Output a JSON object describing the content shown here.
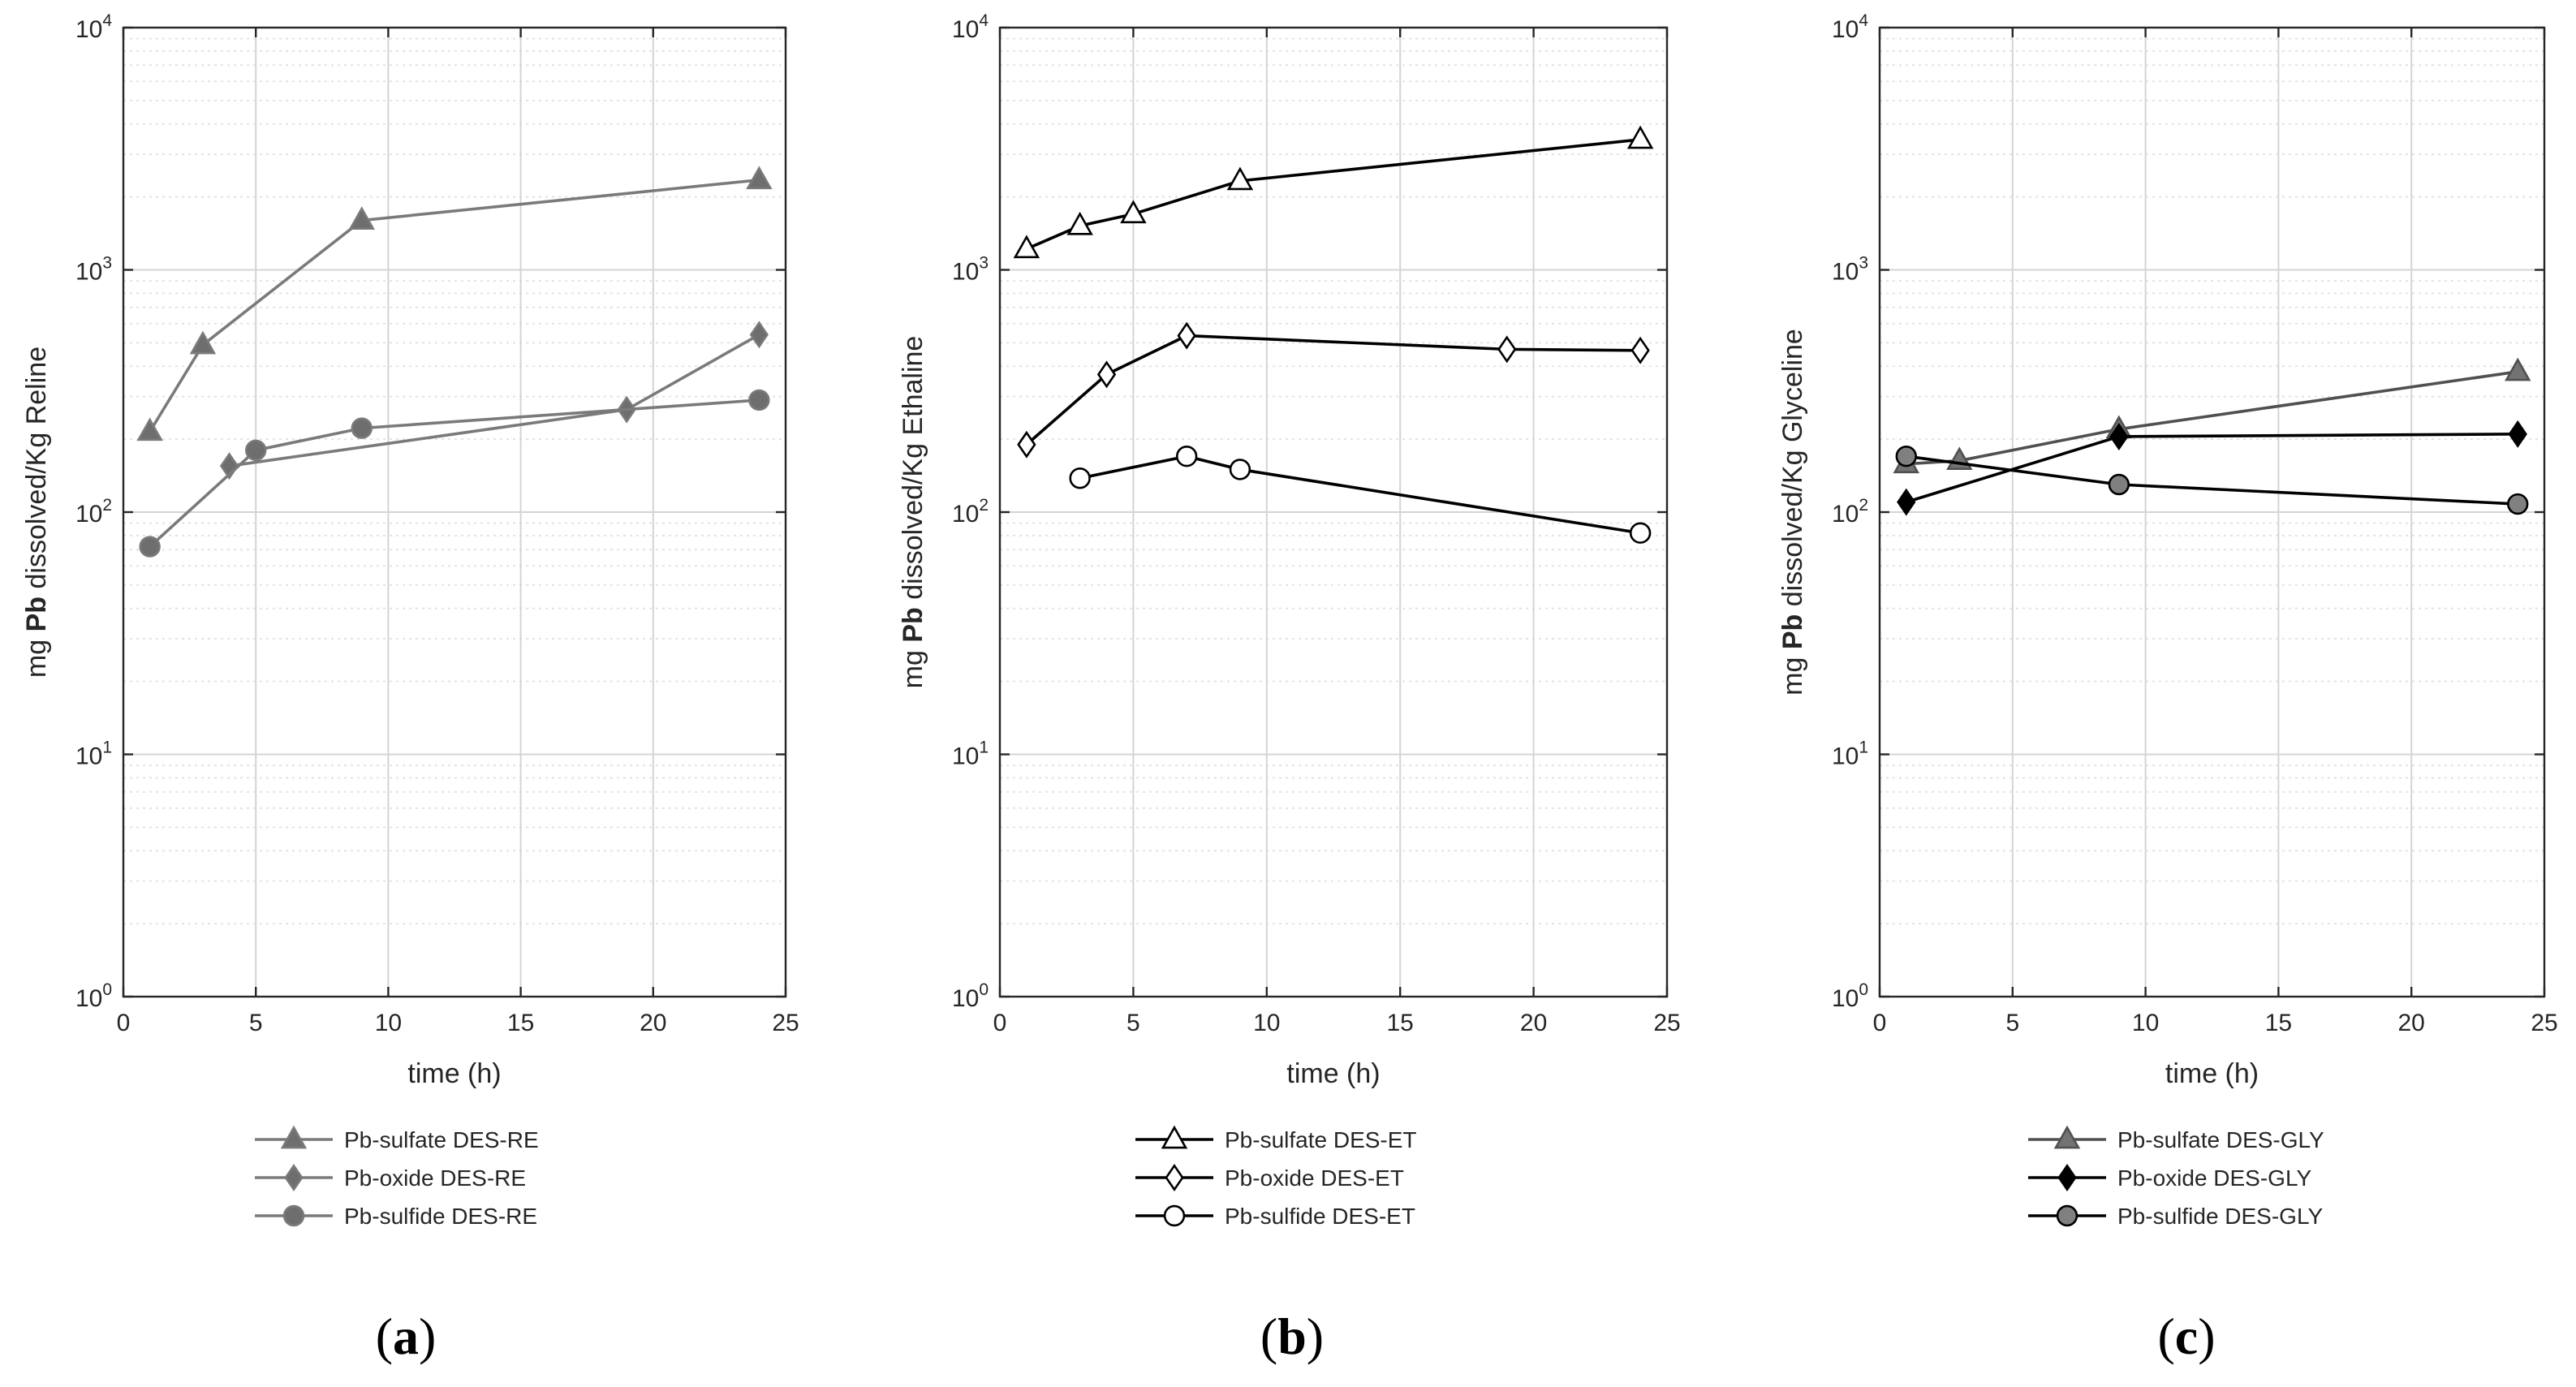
{
  "chart_data": [
    {
      "type": "line",
      "panel_label": "(a)",
      "panel_letter": "a",
      "xlabel": "time (h)",
      "ylabel_prefix": "mg ",
      "ylabel_bold": "Pb",
      "ylabel_suffix": " dissolved/Kg Reline",
      "yscale": "log",
      "xlim": [
        0,
        25
      ],
      "ylim": [
        1,
        10000
      ],
      "xticks": [
        0,
        5,
        10,
        15,
        20,
        25
      ],
      "yticks": [
        {
          "base": "10",
          "exp": "0"
        },
        {
          "base": "10",
          "exp": "1"
        },
        {
          "base": "10",
          "exp": "2"
        },
        {
          "base": "10",
          "exp": "3"
        },
        {
          "base": "10",
          "exp": "4"
        }
      ],
      "grid": true,
      "series": [
        {
          "name": "Pb-sulfate DES-RE",
          "marker": "triangle",
          "line_color": "#7a7a7a",
          "fill": "#6e6e6e",
          "x": [
            1,
            3,
            9,
            24
          ],
          "y": [
            215,
            490,
            1600,
            2350
          ]
        },
        {
          "name": "Pb-oxide DES-RE",
          "marker": "diamond",
          "line_color": "#7a7a7a",
          "fill": "#6e6e6e",
          "x": [
            4,
            19,
            24
          ],
          "y": [
            155,
            265,
            540
          ]
        },
        {
          "name": "Pb-sulfide DES-RE",
          "marker": "circle",
          "line_color": "#7a7a7a",
          "fill": "#6e6e6e",
          "x": [
            1,
            5,
            9,
            24
          ],
          "y": [
            72,
            180,
            222,
            290
          ]
        }
      ]
    },
    {
      "type": "line",
      "panel_label": "(b)",
      "panel_letter": "b",
      "xlabel": "time (h)",
      "ylabel_prefix": "mg ",
      "ylabel_bold": "Pb",
      "ylabel_suffix": " dissolved/Kg Ethaline",
      "yscale": "log",
      "xlim": [
        0,
        25
      ],
      "ylim": [
        1,
        10000
      ],
      "xticks": [
        0,
        5,
        10,
        15,
        20,
        25
      ],
      "yticks": [
        {
          "base": "10",
          "exp": "0"
        },
        {
          "base": "10",
          "exp": "1"
        },
        {
          "base": "10",
          "exp": "2"
        },
        {
          "base": "10",
          "exp": "3"
        },
        {
          "base": "10",
          "exp": "4"
        }
      ],
      "grid": true,
      "series": [
        {
          "name": "Pb-sulfate DES-ET",
          "marker": "triangle",
          "line_color": "#000000",
          "fill": "#ffffff",
          "x": [
            1,
            3,
            5,
            9,
            24
          ],
          "y": [
            1220,
            1520,
            1700,
            2330,
            3450
          ]
        },
        {
          "name": "Pb-oxide DES-ET",
          "marker": "diamond",
          "line_color": "#000000",
          "fill": "#ffffff",
          "x": [
            1,
            4,
            7,
            19,
            24
          ],
          "y": [
            190,
            370,
            535,
            470,
            465
          ]
        },
        {
          "name": "Pb-sulfide DES-ET",
          "marker": "circle",
          "line_color": "#000000",
          "fill": "#ffffff",
          "x": [
            3,
            7,
            9,
            24
          ],
          "y": [
            138,
            170,
            150,
            82
          ]
        }
      ]
    },
    {
      "type": "line",
      "panel_label": "(c)",
      "panel_letter": "c",
      "xlabel": "time (h)",
      "ylabel_prefix": "mg ",
      "ylabel_bold": "Pb",
      "ylabel_suffix": " dissolved/Kg Glyceline",
      "yscale": "log",
      "xlim": [
        0,
        25
      ],
      "ylim": [
        1,
        10000
      ],
      "xticks": [
        0,
        5,
        10,
        15,
        20,
        25
      ],
      "yticks": [
        {
          "base": "10",
          "exp": "0"
        },
        {
          "base": "10",
          "exp": "1"
        },
        {
          "base": "10",
          "exp": "2"
        },
        {
          "base": "10",
          "exp": "3"
        },
        {
          "base": "10",
          "exp": "4"
        }
      ],
      "grid": true,
      "series": [
        {
          "name": "Pb-sulfate DES-GLY",
          "marker": "triangle",
          "line_color": "#505050",
          "fill": "#737373",
          "x": [
            1,
            3,
            9,
            24
          ],
          "y": [
            158,
            163,
            220,
            380
          ]
        },
        {
          "name": "Pb-oxide DES-GLY",
          "marker": "diamond",
          "line_color": "#000000",
          "fill": "#000000",
          "x": [
            1,
            9,
            24
          ],
          "y": [
            110,
            205,
            210
          ]
        },
        {
          "name": "Pb-sulfide DES-GLY",
          "marker": "circle",
          "line_color": "#000000",
          "fill": "#808080",
          "x": [
            1,
            9,
            24
          ],
          "y": [
            170,
            130,
            108
          ]
        }
      ]
    }
  ]
}
